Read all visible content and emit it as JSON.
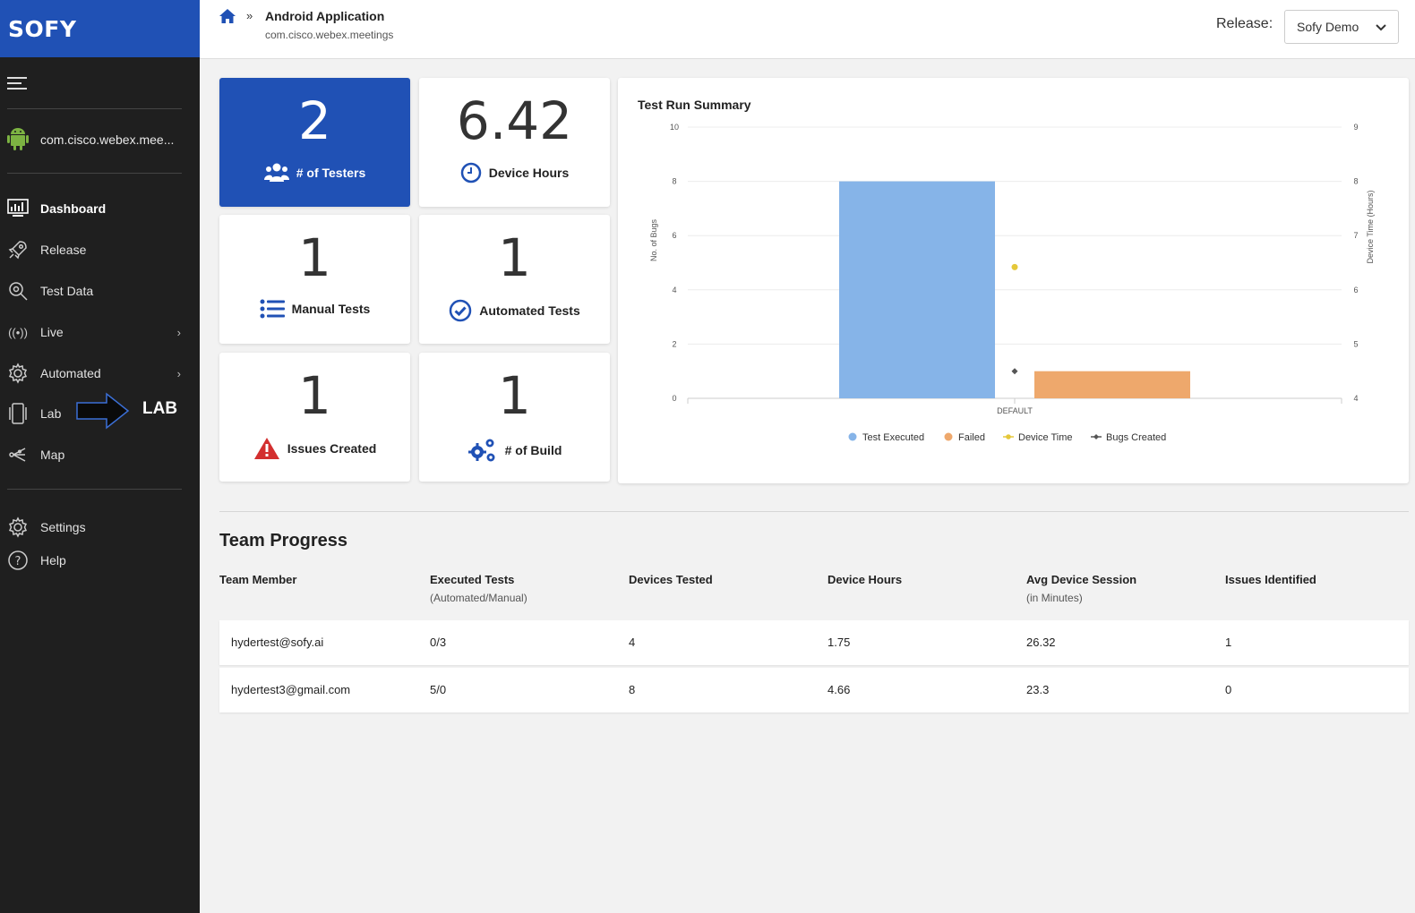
{
  "brand": "SOFY",
  "sidebar": {
    "app_name": "com.cisco.webex.mee...",
    "items": [
      {
        "label": "Dashboard",
        "icon": "dashboard-icon"
      },
      {
        "label": "Release",
        "icon": "rocket-icon"
      },
      {
        "label": "Test Data",
        "icon": "search-gear-icon"
      },
      {
        "label": "Live",
        "icon": "broadcast-icon"
      },
      {
        "label": "Automated",
        "icon": "gear-icon"
      },
      {
        "label": "Lab",
        "icon": "device-icon"
      },
      {
        "label": "Map",
        "icon": "map-icon"
      },
      {
        "label": "Settings",
        "icon": "settings-icon"
      },
      {
        "label": "Help",
        "icon": "help-icon"
      }
    ],
    "lab_annotation": "LAB"
  },
  "header": {
    "breadcrumb_sep": "»",
    "title": "Android Application",
    "subtitle": "com.cisco.webex.meetings",
    "release_label": "Release:",
    "release_value": "Sofy Demo"
  },
  "stats": {
    "testers": {
      "value": "2",
      "label": "# of Testers"
    },
    "device_hours": {
      "value": "6.42",
      "label": "Device Hours"
    },
    "manual_tests": {
      "value": "1",
      "label": "Manual Tests"
    },
    "automated_tests": {
      "value": "1",
      "label": "Automated Tests"
    },
    "issues_created": {
      "value": "1",
      "label": "Issues Created"
    },
    "builds": {
      "value": "1",
      "label": "# of Build"
    }
  },
  "chart_data": {
    "type": "bar",
    "title": "Test Run Summary",
    "categories": [
      "DEFAULT"
    ],
    "ylabel": "No. of Bugs",
    "y2label": "Device Time (Hours)",
    "ylim": [
      0,
      10
    ],
    "y2lim": [
      4,
      9
    ],
    "yticks": [
      "0",
      "2",
      "4",
      "6",
      "8",
      "10"
    ],
    "y2ticks": [
      "4",
      "5",
      "6",
      "7",
      "8",
      "9"
    ],
    "series": [
      {
        "name": "Test Executed",
        "kind": "bar",
        "values": [
          8
        ],
        "color": "#86b4e8"
      },
      {
        "name": "Failed",
        "kind": "bar",
        "values": [
          1
        ],
        "color": "#eea86c"
      },
      {
        "name": "Device Time",
        "kind": "point",
        "axis": "right",
        "values": [
          6.42
        ],
        "color": "#e5c83a"
      },
      {
        "name": "Bugs Created",
        "kind": "point",
        "values": [
          1
        ],
        "color": "#555555"
      }
    ],
    "grid": true,
    "legend": "bottom"
  },
  "team_progress": {
    "title": "Team Progress",
    "headers": [
      {
        "label": "Team Member",
        "sub": ""
      },
      {
        "label": "Executed Tests",
        "sub": "(Automated/Manual)"
      },
      {
        "label": "Devices Tested",
        "sub": ""
      },
      {
        "label": "Device Hours",
        "sub": ""
      },
      {
        "label": "Avg Device Session",
        "sub": "(in Minutes)"
      },
      {
        "label": "Issues Identified",
        "sub": ""
      }
    ],
    "rows": [
      [
        "hydertest@sofy.ai",
        "0/3",
        "4",
        "1.75",
        "26.32",
        "1"
      ],
      [
        "hydertest3@gmail.com",
        "5/0",
        "8",
        "4.66",
        "23.3",
        "0"
      ]
    ]
  }
}
